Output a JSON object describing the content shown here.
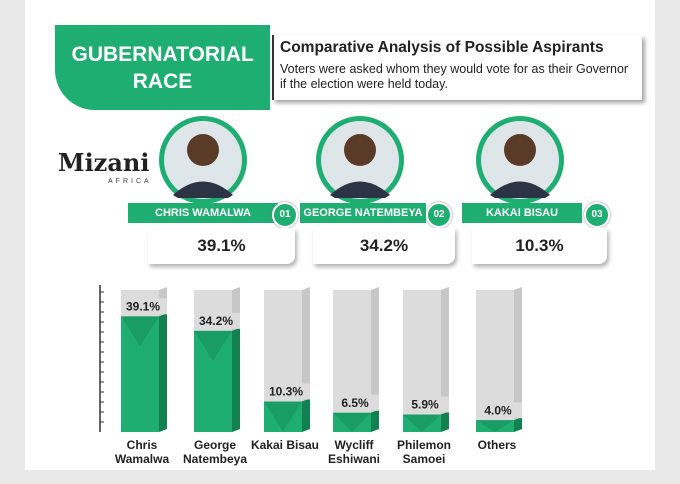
{
  "header": {
    "badge": "GUBERNATORIAL RACE",
    "title": "Comparative Analysis of Possible Aspirants",
    "subtitle": "Voters were asked whom they would vote for as their Governor if the election were held today."
  },
  "logo": {
    "name": "Mizani",
    "region": "AFRICA"
  },
  "aspirants": [
    {
      "name": "CHRIS WAMALWA",
      "rank": "01",
      "share": "39.1%"
    },
    {
      "name": "GEORGE NATEMBEYA",
      "rank": "02",
      "share": "34.2%"
    },
    {
      "name": "KAKAI BISAU",
      "rank": "03",
      "share": "10.3%"
    }
  ],
  "chart_data": {
    "type": "bar",
    "categories": [
      "Chris Wamalwa",
      "George Natembeya",
      "Kakai Bisau",
      "Wycliff Eshiwani",
      "Philemon Samoei",
      "Others"
    ],
    "values": [
      39.1,
      34.2,
      10.3,
      6.5,
      5.9,
      4.0
    ],
    "value_labels": [
      "39.1%",
      "34.2%",
      "10.3%",
      "6.5%",
      "5.9%",
      "4.0%"
    ],
    "color": "#1fae72",
    "ylim": [
      0,
      48
    ]
  }
}
